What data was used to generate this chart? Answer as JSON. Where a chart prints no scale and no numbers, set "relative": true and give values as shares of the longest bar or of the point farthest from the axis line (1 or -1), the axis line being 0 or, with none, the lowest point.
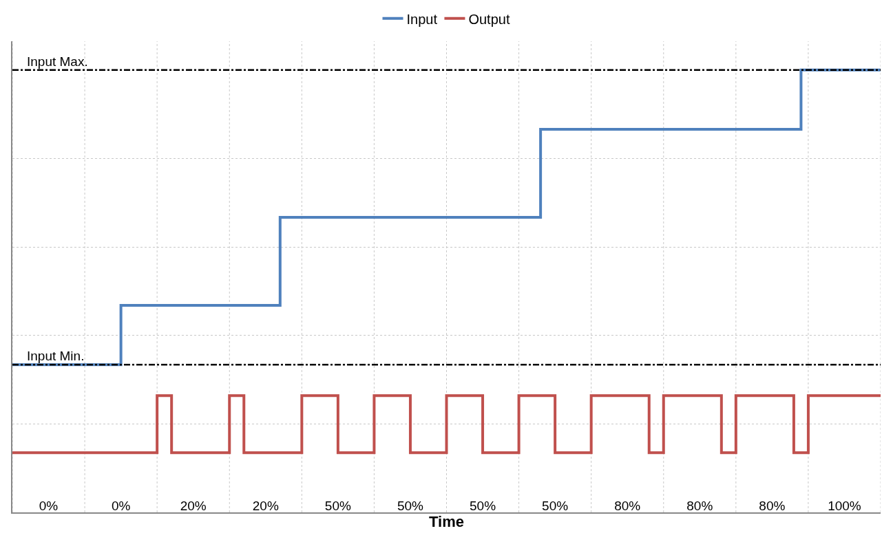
{
  "chart_data": {
    "type": "step",
    "relative": true,
    "xlabel": "Time",
    "categories": [
      null,
      null,
      null,
      null,
      null,
      "0%",
      null,
      null,
      null,
      null,
      null,
      null,
      null,
      null,
      null,
      "0%",
      null,
      null,
      null,
      null,
      null,
      null,
      null,
      null,
      null,
      "20%",
      null,
      null,
      null,
      null,
      null,
      null,
      null,
      null,
      null,
      "20%",
      null,
      null,
      null,
      null,
      null,
      null,
      null,
      null,
      null,
      "50%",
      null,
      null,
      null,
      null,
      null,
      null,
      null,
      null,
      null,
      "50%",
      null,
      null,
      null,
      null,
      null,
      null,
      null,
      null,
      null,
      "50%",
      null,
      null,
      null,
      null,
      null,
      null,
      null,
      null,
      null,
      "50%",
      null,
      null,
      null,
      null,
      null,
      null,
      null,
      null,
      null,
      "80%",
      null,
      null,
      null,
      null,
      null,
      null,
      null,
      null,
      null,
      "80%",
      null,
      null,
      null,
      null,
      null,
      null,
      null,
      null,
      null,
      "80%",
      null,
      null,
      null,
      null,
      null,
      null,
      null,
      null,
      null,
      "100%",
      null,
      null,
      null,
      null,
      null
    ],
    "series": [
      {
        "name": "Input",
        "color": "#4f81bd",
        "values": [
          0.334,
          0.334,
          0.334,
          0.334,
          0.334,
          0.334,
          0.334,
          0.334,
          0.334,
          0.334,
          0.334,
          0.334,
          0.334,
          0.334,
          0.334,
          0.468,
          0.468,
          0.468,
          0.468,
          0.468,
          0.468,
          0.468,
          0.468,
          0.468,
          0.468,
          0.468,
          0.468,
          0.468,
          0.468,
          0.468,
          0.468,
          0.468,
          0.468,
          0.468,
          0.468,
          0.468,
          0.468,
          0.667,
          0.667,
          0.667,
          0.667,
          0.667,
          0.667,
          0.667,
          0.667,
          0.667,
          0.667,
          0.667,
          0.667,
          0.667,
          0.667,
          0.667,
          0.667,
          0.667,
          0.667,
          0.667,
          0.667,
          0.667,
          0.667,
          0.667,
          0.667,
          0.667,
          0.667,
          0.667,
          0.667,
          0.667,
          0.667,
          0.667,
          0.667,
          0.667,
          0.667,
          0.667,
          0.667,
          0.866,
          0.866,
          0.866,
          0.866,
          0.866,
          0.866,
          0.866,
          0.866,
          0.866,
          0.866,
          0.866,
          0.866,
          0.866,
          0.866,
          0.866,
          0.866,
          0.866,
          0.866,
          0.866,
          0.866,
          0.866,
          0.866,
          0.866,
          0.866,
          0.866,
          0.866,
          0.866,
          0.866,
          0.866,
          0.866,
          0.866,
          0.866,
          0.866,
          0.866,
          0.866,
          0.866,
          1,
          1,
          1,
          1,
          1,
          1,
          1,
          1,
          1,
          1,
          1,
          1
        ]
      },
      {
        "name": "Output",
        "color": "#c0504d",
        "values": [
          0.135,
          0.135,
          0.135,
          0.135,
          0.135,
          0.135,
          0.135,
          0.135,
          0.135,
          0.135,
          0.135,
          0.135,
          0.135,
          0.135,
          0.135,
          0.135,
          0.135,
          0.135,
          0.135,
          0.135,
          0.264,
          0.264,
          0.135,
          0.135,
          0.135,
          0.135,
          0.135,
          0.135,
          0.135,
          0.135,
          0.264,
          0.264,
          0.135,
          0.135,
          0.135,
          0.135,
          0.135,
          0.135,
          0.135,
          0.135,
          0.264,
          0.264,
          0.264,
          0.264,
          0.264,
          0.135,
          0.135,
          0.135,
          0.135,
          0.135,
          0.264,
          0.264,
          0.264,
          0.264,
          0.264,
          0.135,
          0.135,
          0.135,
          0.135,
          0.135,
          0.264,
          0.264,
          0.264,
          0.264,
          0.264,
          0.135,
          0.135,
          0.135,
          0.135,
          0.135,
          0.264,
          0.264,
          0.264,
          0.264,
          0.264,
          0.135,
          0.135,
          0.135,
          0.135,
          0.135,
          0.264,
          0.264,
          0.264,
          0.264,
          0.264,
          0.264,
          0.264,
          0.264,
          0.135,
          0.135,
          0.264,
          0.264,
          0.264,
          0.264,
          0.264,
          0.264,
          0.264,
          0.264,
          0.135,
          0.135,
          0.264,
          0.264,
          0.264,
          0.264,
          0.264,
          0.264,
          0.264,
          0.264,
          0.135,
          0.135,
          0.264,
          0.264,
          0.264,
          0.264,
          0.264,
          0.264,
          0.264,
          0.264,
          0.264,
          0.264,
          0.264
        ]
      }
    ],
    "ref_lines": [
      {
        "axis": "y",
        "value": 1,
        "label": "Input Max.",
        "color": "#000000",
        "line_style": "dashed"
      },
      {
        "axis": "y",
        "value": 0.334,
        "label": "Input Min.",
        "color": "#000000",
        "line_style": "dashed"
      }
    ],
    "grid": true,
    "legend": "top",
    "line_style": "solid",
    "marker": "none"
  }
}
